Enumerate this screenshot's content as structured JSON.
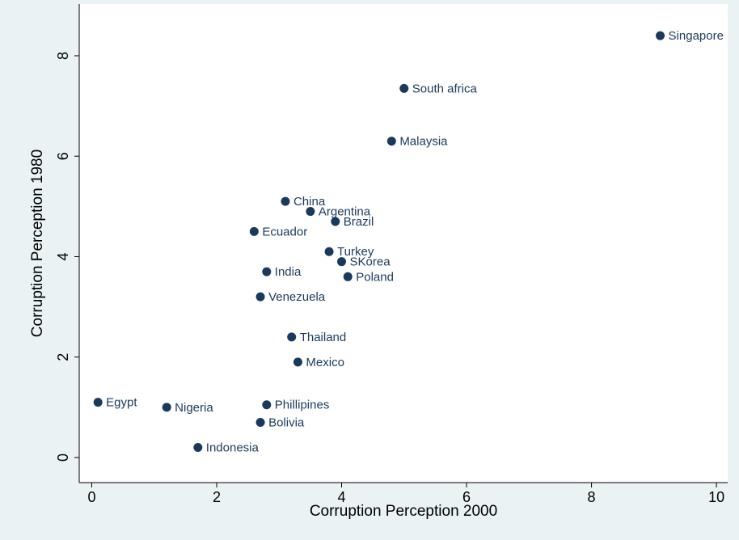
{
  "chart_data": {
    "type": "scatter",
    "x_label": "Corruption Perception 2000",
    "y_label": "Corruption Perception 1980",
    "x": [
      9.1,
      5.0,
      4.8,
      3.1,
      3.5,
      3.9,
      2.6,
      3.8,
      4.0,
      4.1,
      2.8,
      2.7,
      3.2,
      3.3,
      0.1,
      1.2,
      2.8,
      2.7,
      1.7
    ],
    "values": [
      8.4,
      7.35,
      6.3,
      5.1,
      4.9,
      4.7,
      4.5,
      4.1,
      3.9,
      3.6,
      3.7,
      3.2,
      2.4,
      1.9,
      1.1,
      1.0,
      1.05,
      0.7,
      0.2
    ],
    "point_labels": [
      "Singapore",
      "South africa",
      "Malaysia",
      "China",
      "Argentina",
      "Brazil",
      "Ecuador",
      "Turkey",
      "SKorea",
      "Poland",
      "India",
      "Venezuela",
      "Thailand",
      "Mexico",
      "Egypt",
      "Nigeria",
      "Phillipines",
      "Bolivia",
      "Indonesia"
    ],
    "color": "#1a3a5c",
    "xlim": [
      -0.2,
      10.18
    ],
    "ylim": [
      -0.5,
      9.03
    ],
    "xticks": [
      0,
      2,
      4,
      6,
      8,
      10
    ],
    "yticks": [
      0,
      2,
      4,
      6,
      8
    ],
    "grid": false
  }
}
